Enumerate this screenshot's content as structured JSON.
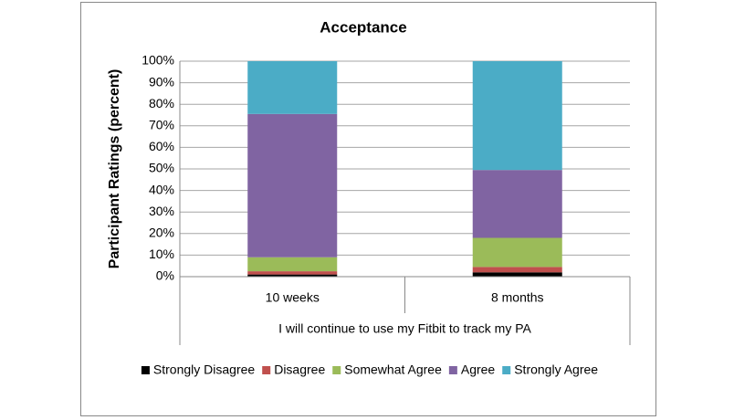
{
  "chart_data": {
    "type": "stacked_bar",
    "title": "Acceptance",
    "y_label": "Participant  Ratings (percent)",
    "group_label": "I will continue to use my Fitbit to track my PA",
    "categories": [
      "10 weeks",
      "8 months"
    ],
    "series": [
      {
        "name": "Strongly Disagree",
        "color": "#000000",
        "values": [
          1,
          2
        ]
      },
      {
        "name": "Disagree",
        "color": "#c0504d",
        "values": [
          1.5,
          2.5
        ]
      },
      {
        "name": "Somewhat Agree",
        "color": "#9bbb59",
        "values": [
          6.5,
          13.5
        ]
      },
      {
        "name": "Agree",
        "color": "#8064a2",
        "values": [
          66.5,
          31.5
        ]
      },
      {
        "name": "Strongly Agree",
        "color": "#4bacc6",
        "values": [
          24.5,
          50.5
        ]
      }
    ],
    "ylim": [
      0,
      100
    ],
    "yticks": [
      {
        "value": 0,
        "label": "0%"
      },
      {
        "value": 10,
        "label": "10%"
      },
      {
        "value": 20,
        "label": "20%"
      },
      {
        "value": 30,
        "label": "30%"
      },
      {
        "value": 40,
        "label": "40%"
      },
      {
        "value": 50,
        "label": "50%"
      },
      {
        "value": 60,
        "label": "60%"
      },
      {
        "value": 70,
        "label": "70%"
      },
      {
        "value": 80,
        "label": "80%"
      },
      {
        "value": 90,
        "label": "90%"
      },
      {
        "value": 100,
        "label": "100%"
      }
    ],
    "grid": true,
    "legend": "bottom"
  }
}
